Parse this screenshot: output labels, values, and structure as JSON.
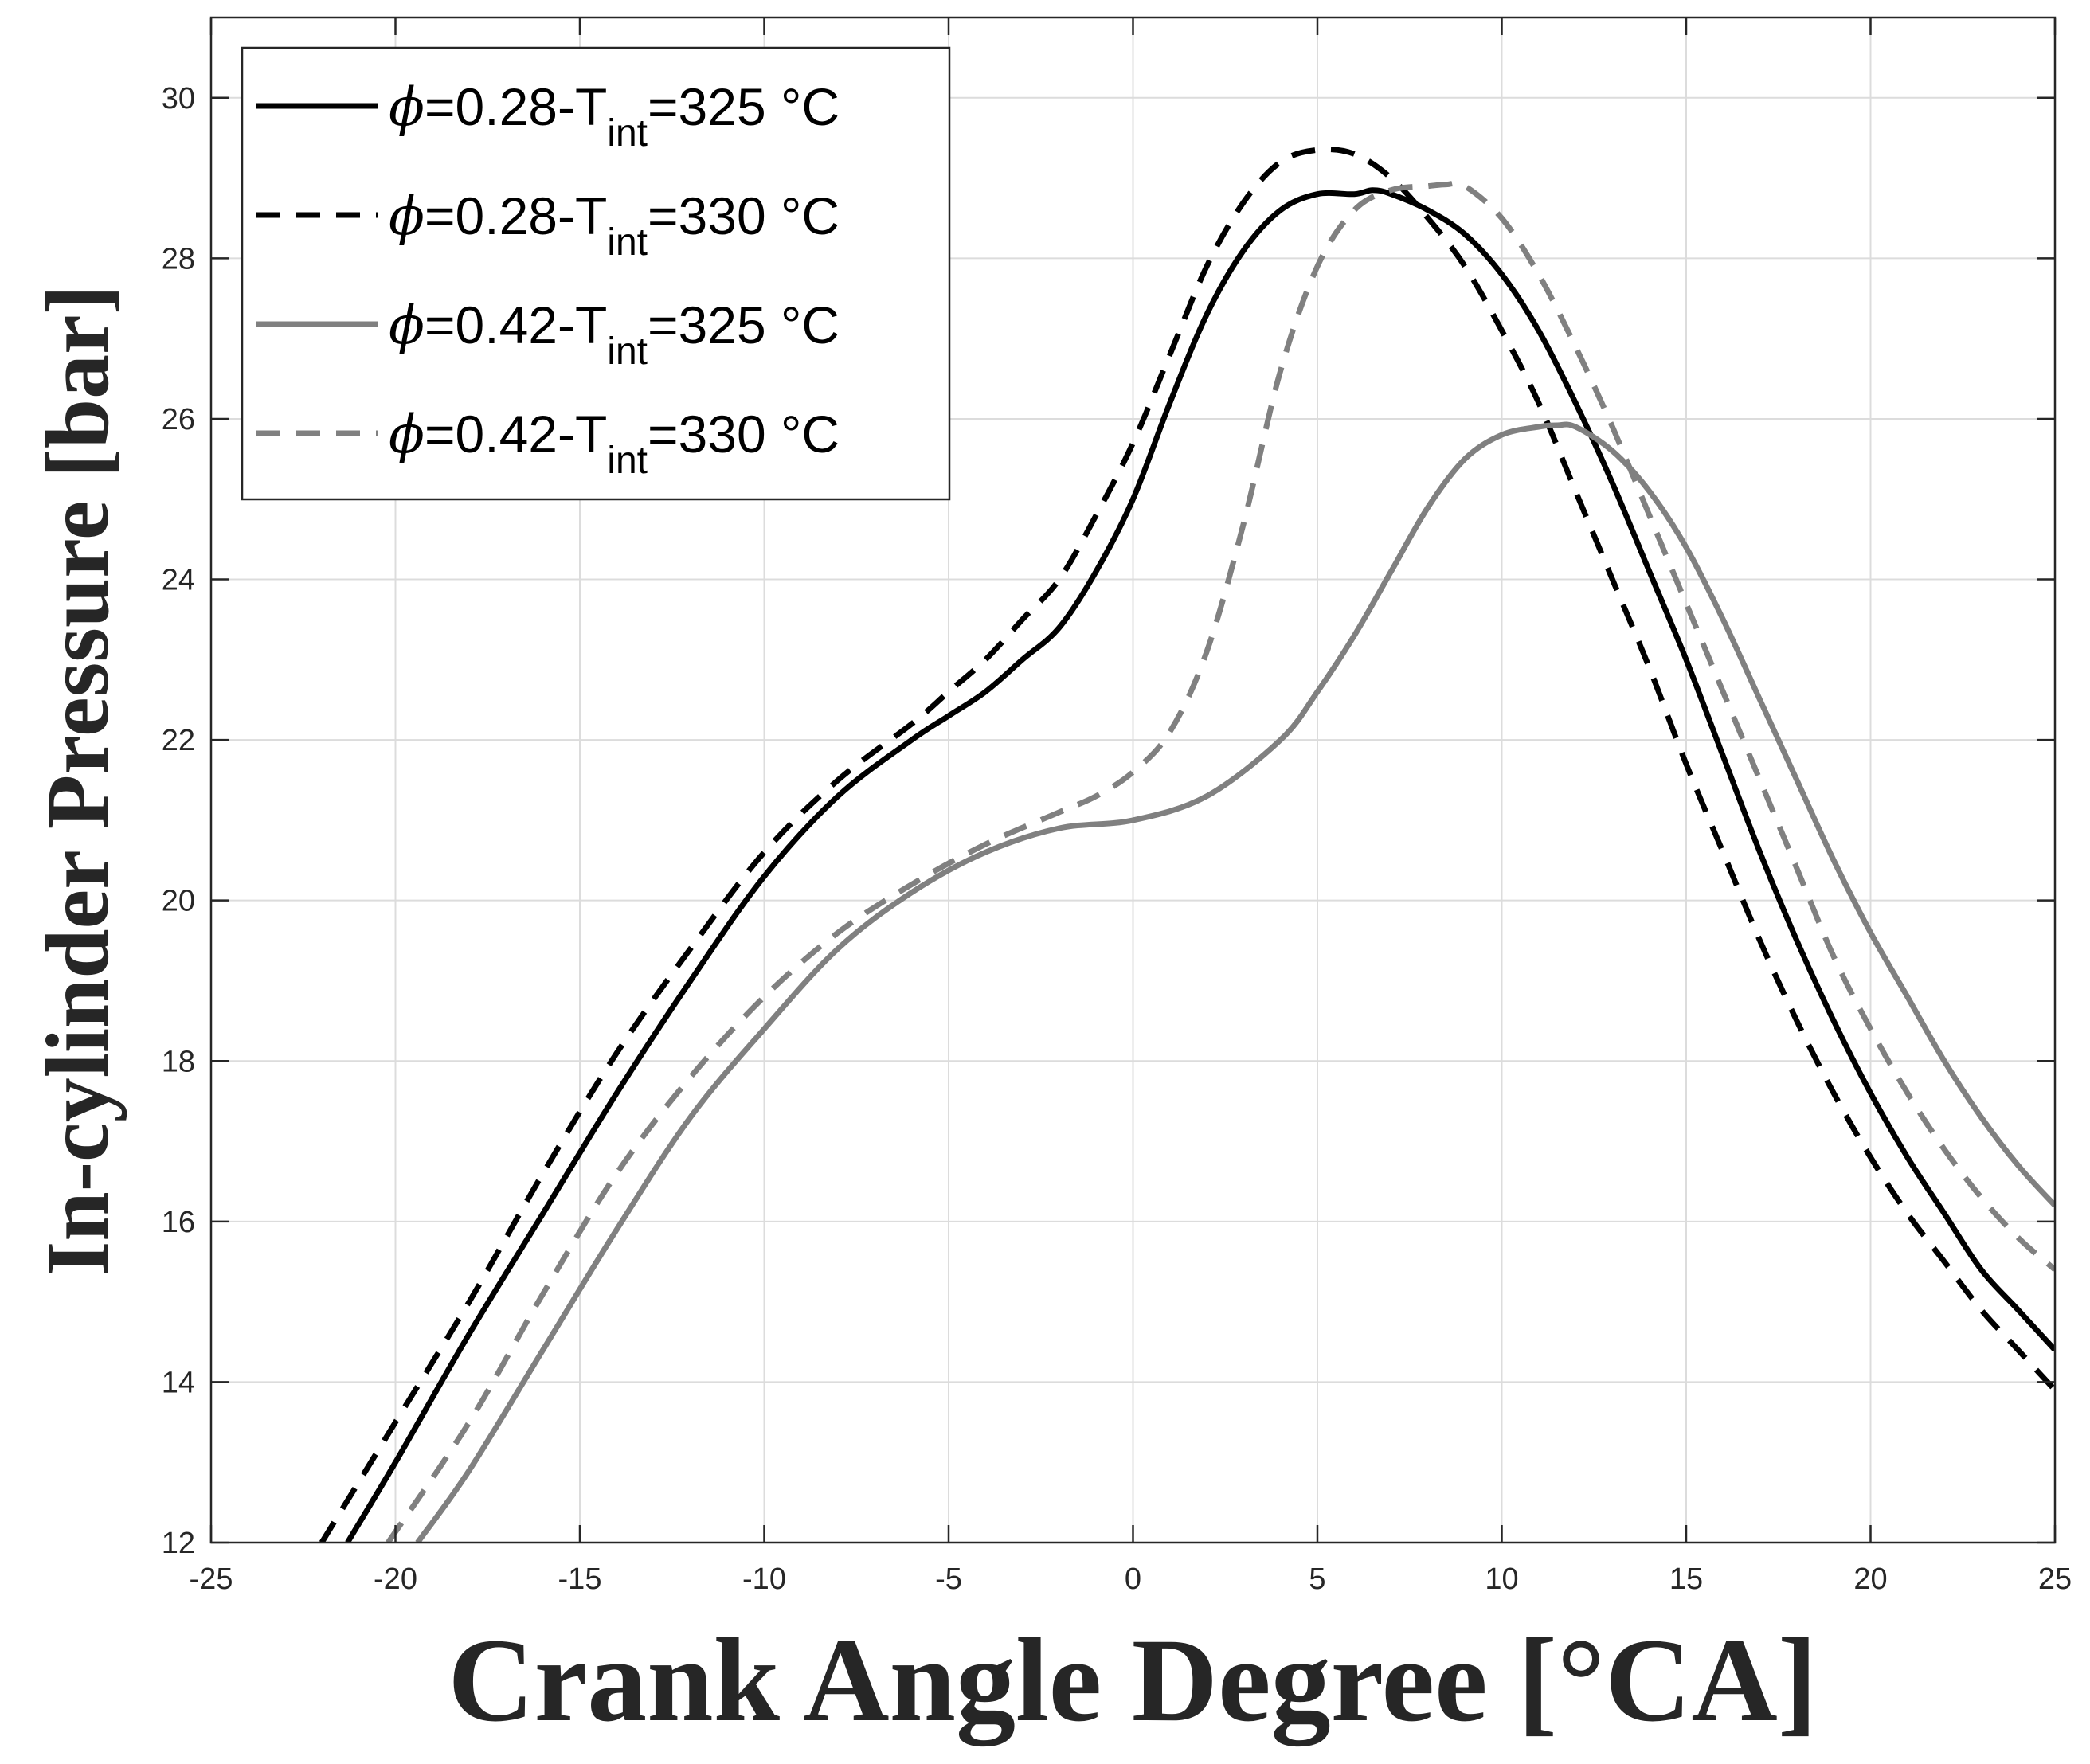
{
  "chart_data": {
    "type": "line",
    "title": "",
    "xlabel": "Crank Angle Degree [°CA]",
    "ylabel": "In-cylinder Pressure [bar]",
    "xlim": [
      -25,
      25
    ],
    "ylim": [
      12,
      31
    ],
    "xticks": [
      -25,
      -20,
      -15,
      -10,
      -5,
      0,
      5,
      10,
      15,
      20,
      25
    ],
    "yticks": [
      12,
      14,
      16,
      18,
      20,
      22,
      24,
      26,
      28,
      30
    ],
    "xtick_labels": [
      "-25",
      "-20",
      "-15",
      "-10",
      "-5",
      "0",
      "5",
      "10",
      "15",
      "20",
      "25"
    ],
    "ytick_labels": [
      "12",
      "14",
      "16",
      "18",
      "20",
      "22",
      "24",
      "26",
      "28",
      "30"
    ],
    "grid": true,
    "legend_position": "top-left",
    "series": [
      {
        "name": "ϕ=0.28-Tint=325 °C",
        "legend": {
          "symbol": "ϕ",
          "prefix": "=0.28-T",
          "sub": "int",
          "suffix": "=325 °C"
        },
        "color": "#000000",
        "style": "solid",
        "x": [
          -21.3,
          -20,
          -18,
          -16,
          -14,
          -12,
          -10,
          -8,
          -6,
          -5,
          -4,
          -3,
          -2,
          -1,
          0,
          1,
          2,
          3,
          4,
          5,
          6,
          6.5,
          7,
          8,
          9,
          10,
          11,
          12,
          13,
          14,
          15,
          16,
          17,
          18,
          19,
          20,
          21,
          22,
          23,
          24,
          25
        ],
        "y": [
          12.0,
          13.0,
          14.6,
          16.1,
          17.6,
          19.0,
          20.3,
          21.3,
          22.0,
          22.3,
          22.6,
          23.0,
          23.4,
          24.1,
          25.0,
          26.2,
          27.3,
          28.1,
          28.6,
          28.8,
          28.8,
          28.85,
          28.8,
          28.6,
          28.3,
          27.8,
          27.1,
          26.2,
          25.2,
          24.1,
          23.0,
          21.8,
          20.6,
          19.5,
          18.5,
          17.6,
          16.8,
          16.1,
          15.4,
          14.9,
          14.4
        ]
      },
      {
        "name": "ϕ=0.28-Tint=330 °C",
        "legend": {
          "symbol": "ϕ",
          "prefix": "=0.28-T",
          "sub": "int",
          "suffix": "=330 °C"
        },
        "color": "#000000",
        "style": "dashed",
        "x": [
          -22,
          -20,
          -18,
          -16,
          -14,
          -12,
          -10,
          -8,
          -6,
          -5,
          -4,
          -3,
          -2,
          -1,
          0,
          1,
          2,
          3,
          4,
          5,
          6,
          7,
          8,
          9,
          10,
          11,
          12,
          13,
          14,
          15,
          16,
          17,
          18,
          19,
          20,
          21,
          22,
          23,
          24,
          25
        ],
        "y": [
          12.0,
          13.5,
          15.0,
          16.6,
          18.1,
          19.4,
          20.6,
          21.5,
          22.2,
          22.6,
          23.0,
          23.5,
          24.0,
          24.8,
          25.7,
          26.8,
          27.9,
          28.7,
          29.2,
          29.35,
          29.3,
          29.0,
          28.5,
          27.9,
          27.1,
          26.2,
          25.1,
          24.0,
          22.9,
          21.7,
          20.6,
          19.5,
          18.5,
          17.6,
          16.8,
          16.1,
          15.5,
          14.9,
          14.4,
          13.9
        ]
      },
      {
        "name": "ϕ=0.42-Tint=325 °C",
        "legend": {
          "symbol": "ϕ",
          "prefix": "=0.42-T",
          "sub": "int",
          "suffix": "=325 °C"
        },
        "color": "#808080",
        "style": "solid",
        "x": [
          -19.4,
          -18,
          -16,
          -14,
          -12,
          -10,
          -8,
          -6,
          -4,
          -2,
          0,
          2,
          4,
          5,
          6,
          7,
          8,
          9,
          10,
          11,
          11.5,
          12,
          13,
          14,
          15,
          16,
          17,
          18,
          19,
          20,
          21,
          22,
          23,
          24,
          25
        ],
        "y": [
          12.0,
          12.9,
          14.4,
          15.9,
          17.3,
          18.4,
          19.4,
          20.1,
          20.6,
          20.9,
          21.0,
          21.3,
          22.0,
          22.6,
          23.3,
          24.1,
          24.9,
          25.5,
          25.8,
          25.9,
          25.92,
          25.9,
          25.6,
          25.1,
          24.4,
          23.5,
          22.5,
          21.5,
          20.5,
          19.6,
          18.8,
          18.0,
          17.3,
          16.7,
          16.2
        ]
      },
      {
        "name": "ϕ=0.42-Tint=330 °C",
        "legend": {
          "symbol": "ϕ",
          "prefix": "=0.42-T",
          "sub": "int",
          "suffix": "=330 °C"
        },
        "color": "#808080",
        "style": "dashed",
        "x": [
          -20.2,
          -18,
          -16,
          -14,
          -12,
          -10,
          -8,
          -6,
          -4,
          -2,
          -1,
          0,
          1,
          2,
          3,
          4,
          5,
          6,
          7,
          8,
          8.5,
          9,
          10,
          11,
          12,
          13,
          14,
          15,
          16,
          17,
          18,
          19,
          20,
          21,
          22,
          23,
          24,
          25
        ],
        "y": [
          12.0,
          13.5,
          15.1,
          16.6,
          17.8,
          18.8,
          19.6,
          20.2,
          20.7,
          21.1,
          21.3,
          21.6,
          22.1,
          23.1,
          24.7,
          26.6,
          27.9,
          28.6,
          28.85,
          28.9,
          28.92,
          28.9,
          28.5,
          27.8,
          26.9,
          25.9,
          24.8,
          23.7,
          22.6,
          21.5,
          20.4,
          19.3,
          18.4,
          17.6,
          16.9,
          16.3,
          15.8,
          15.4
        ]
      }
    ]
  }
}
